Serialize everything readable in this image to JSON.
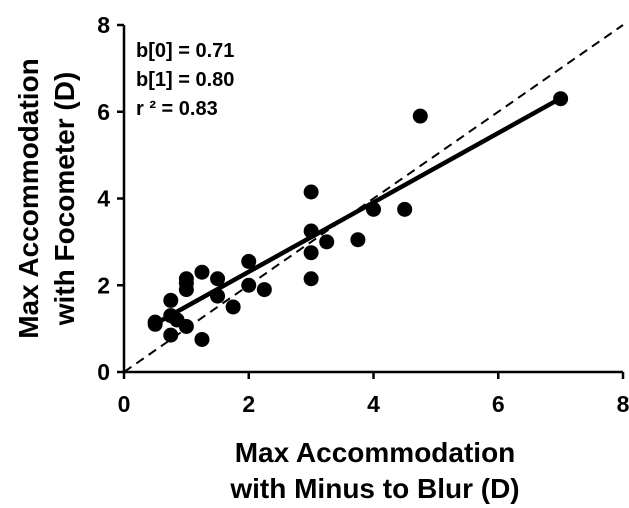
{
  "chart_data": {
    "type": "scatter",
    "title": "",
    "xlabel_lines": [
      "Max Accommodation",
      "with Minus to Blur (D)"
    ],
    "ylabel_lines": [
      "Max Accommodation",
      "with Focometer (D)"
    ],
    "xlim": [
      0,
      8
    ],
    "ylim": [
      0,
      8
    ],
    "xticks": [
      0,
      2,
      4,
      6,
      8
    ],
    "yticks": [
      0,
      2,
      4,
      6,
      8
    ],
    "grid": false,
    "points": [
      {
        "x": 0.5,
        "y": 1.1
      },
      {
        "x": 0.5,
        "y": 1.15
      },
      {
        "x": 0.75,
        "y": 0.85
      },
      {
        "x": 0.75,
        "y": 1.3
      },
      {
        "x": 0.75,
        "y": 1.65
      },
      {
        "x": 0.85,
        "y": 1.2
      },
      {
        "x": 1.0,
        "y": 1.05
      },
      {
        "x": 1.0,
        "y": 1.9
      },
      {
        "x": 1.0,
        "y": 2.05
      },
      {
        "x": 1.0,
        "y": 2.15
      },
      {
        "x": 1.25,
        "y": 0.75
      },
      {
        "x": 1.25,
        "y": 2.3
      },
      {
        "x": 1.5,
        "y": 1.75
      },
      {
        "x": 1.5,
        "y": 2.15
      },
      {
        "x": 1.75,
        "y": 1.5
      },
      {
        "x": 2.0,
        "y": 2.0
      },
      {
        "x": 2.0,
        "y": 2.55
      },
      {
        "x": 2.25,
        "y": 1.9
      },
      {
        "x": 3.0,
        "y": 2.15
      },
      {
        "x": 3.0,
        "y": 2.75
      },
      {
        "x": 3.0,
        "y": 3.25
      },
      {
        "x": 3.0,
        "y": 4.15
      },
      {
        "x": 3.25,
        "y": 3.0
      },
      {
        "x": 3.75,
        "y": 3.05
      },
      {
        "x": 4.0,
        "y": 3.75
      },
      {
        "x": 4.5,
        "y": 3.75
      },
      {
        "x": 4.75,
        "y": 5.9
      },
      {
        "x": 7.0,
        "y": 6.3
      }
    ],
    "regression": {
      "intercept": 0.71,
      "slope": 0.8,
      "x_range": [
        0.5,
        7.0
      ]
    },
    "identity_line": {
      "x_range": [
        0,
        8
      ],
      "style": "dashed"
    },
    "annotations": [
      "b[0] = 0.71",
      "b[1] = 0.80",
      "r ² = 0.83"
    ],
    "marker_color": "#000000",
    "line_color": "#000000"
  }
}
